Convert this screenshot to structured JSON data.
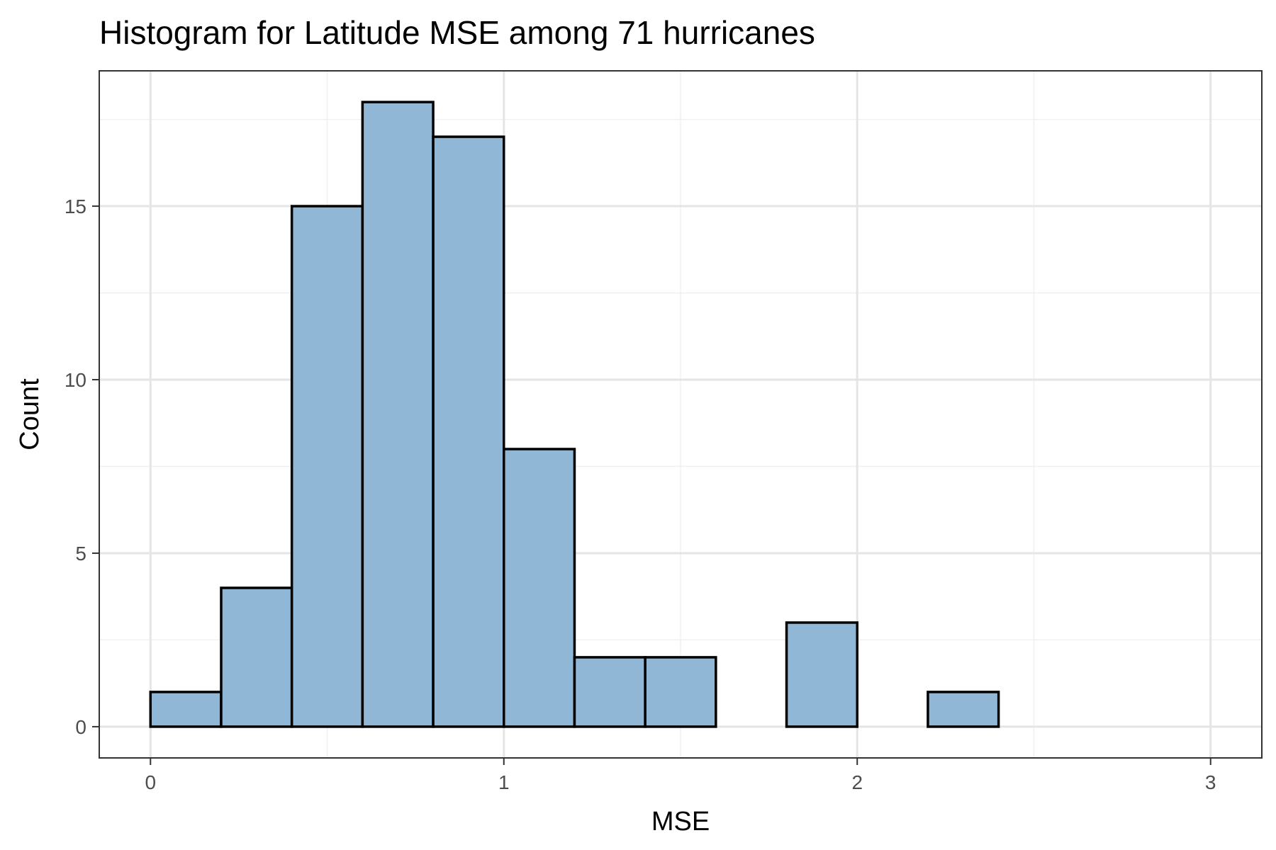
{
  "chart_data": {
    "type": "bar",
    "subtype": "histogram",
    "title": "Histogram for Latitude MSE among 71 hurricanes",
    "xlabel": "MSE",
    "ylabel": "Count",
    "bin_width": 0.2,
    "bins": [
      {
        "start": 0.0,
        "end": 0.2,
        "count": 1
      },
      {
        "start": 0.2,
        "end": 0.4,
        "count": 4
      },
      {
        "start": 0.4,
        "end": 0.6,
        "count": 15
      },
      {
        "start": 0.6,
        "end": 0.8,
        "count": 18
      },
      {
        "start": 0.8,
        "end": 1.0,
        "count": 17
      },
      {
        "start": 1.0,
        "end": 1.2,
        "count": 8
      },
      {
        "start": 1.2,
        "end": 1.4,
        "count": 2
      },
      {
        "start": 1.4,
        "end": 1.6,
        "count": 2
      },
      {
        "start": 1.6,
        "end": 1.8,
        "count": 0
      },
      {
        "start": 1.8,
        "end": 2.0,
        "count": 3
      },
      {
        "start": 2.0,
        "end": 2.2,
        "count": 0
      },
      {
        "start": 2.2,
        "end": 2.4,
        "count": 1
      },
      {
        "start": 2.4,
        "end": 2.6,
        "count": 0
      },
      {
        "start": 2.6,
        "end": 2.8,
        "count": 0
      },
      {
        "start": 2.8,
        "end": 3.0,
        "count": 0
      }
    ],
    "xlim": [
      -0.145,
      3.145
    ],
    "ylim": [
      -0.9,
      18.9
    ],
    "x_ticks": [
      "0",
      "1",
      "2",
      "3"
    ],
    "x_tick_values": [
      0,
      1,
      2,
      3
    ],
    "y_ticks": [
      "0",
      "5",
      "10",
      "15"
    ],
    "y_tick_values": [
      0,
      5,
      10,
      15
    ],
    "x_minor_gridlines": [
      0.5,
      1.5,
      2.5
    ],
    "y_minor_gridlines": [
      2.5,
      7.5,
      12.5,
      17.5
    ],
    "grid": true,
    "legend": "none",
    "colors": {
      "bar_fill": "#91b7d6",
      "bar_outline": "#000000",
      "grid_major": "#e5e5e5",
      "grid_minor": "#f0f0f0",
      "panel_border": "#333333"
    }
  }
}
